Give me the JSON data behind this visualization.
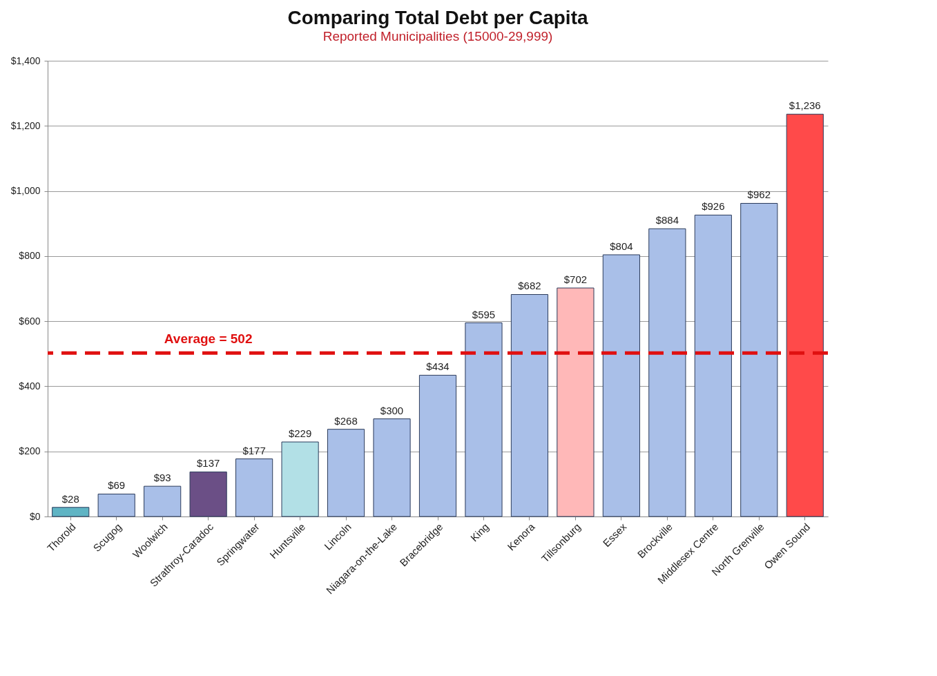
{
  "chart_data": {
    "type": "bar",
    "title": "Comparing Total Debt per Capita",
    "subtitle": "Reported Municipalities (15000-29,999)",
    "categories": [
      "Thorold",
      "Scugog",
      "Woolwich",
      "Strathroy-Caradoc",
      "Springwater",
      "Huntsville",
      "Lincoln",
      "Niagara-on-the-Lake",
      "Bracebridge",
      "King",
      "Kenora",
      "Tillsonburg",
      "Essex",
      "Brockville",
      "Middlesex Centre",
      "North Grenville",
      "Owen Sound"
    ],
    "values": [
      28,
      69,
      93,
      137,
      177,
      229,
      268,
      300,
      434,
      595,
      682,
      702,
      804,
      884,
      926,
      962,
      1236
    ],
    "value_labels": [
      "$28",
      "$69",
      "$93",
      "$137",
      "$177",
      "$229",
      "$268",
      "$300",
      "$434",
      "$595",
      "$682",
      "$702",
      "$804",
      "$884",
      "$926",
      "$962",
      "$1,236"
    ],
    "colors": [
      "#5fb4c4",
      "#a9bfe8",
      "#a9bfe8",
      "#6b4f86",
      "#a9bfe8",
      "#b2e0e6",
      "#a9bfe8",
      "#a9bfe8",
      "#a9bfe8",
      "#a9bfe8",
      "#a9bfe8",
      "#ffb8b8",
      "#a9bfe8",
      "#a9bfe8",
      "#a9bfe8",
      "#a9bfe8",
      "#ff4a4a"
    ],
    "ylim": [
      0,
      1400
    ],
    "yticks": [
      {
        "value": 0,
        "label": "$0"
      },
      {
        "value": 200,
        "label": "$200"
      },
      {
        "value": 400,
        "label": "$400"
      },
      {
        "value": 600,
        "label": "$600"
      },
      {
        "value": 800,
        "label": "$800"
      },
      {
        "value": 1000,
        "label": "$1,000"
      },
      {
        "value": 1200,
        "label": "$1,200"
      },
      {
        "value": 1400,
        "label": "$1,400"
      }
    ],
    "ref_lines": [
      {
        "axis": "y",
        "value": 502,
        "label": "Average = 502",
        "color": "#e01010",
        "line_style": "dashed"
      }
    ],
    "grid": "y"
  }
}
